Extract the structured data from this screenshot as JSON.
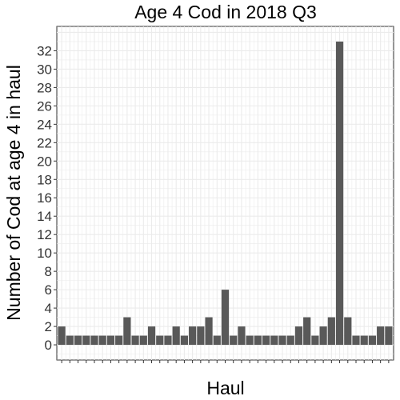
{
  "chart_data": {
    "type": "bar",
    "title": "Age 4 Cod in 2018 Q3",
    "xlabel": "Haul",
    "ylabel": "Number of Cod at age 4 in haul",
    "values": [
      2,
      1,
      1,
      1,
      1,
      1,
      1,
      1,
      3,
      1,
      1,
      2,
      1,
      1,
      2,
      1,
      2,
      2,
      3,
      1,
      6,
      1,
      2,
      1,
      1,
      1,
      1,
      1,
      1,
      2,
      3,
      1,
      2,
      3,
      33,
      3,
      1,
      1,
      1,
      2,
      2
    ],
    "ylim": [
      -1.65,
      34.65
    ],
    "yticks": [
      0,
      2,
      4,
      6,
      8,
      10,
      12,
      14,
      16,
      18,
      20,
      22,
      24,
      26,
      28,
      30,
      32
    ],
    "grid": true,
    "bar_color": "#595959",
    "grid_color": "#ebebeb",
    "background": "#ffffff"
  }
}
